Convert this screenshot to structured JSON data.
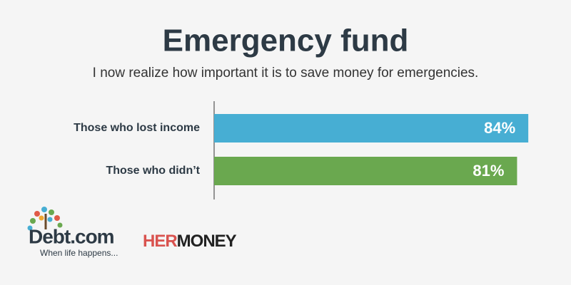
{
  "chart_data": {
    "type": "bar",
    "orientation": "horizontal",
    "title": "Emergency fund",
    "subtitle": "I now realize how important it is to save money for emergencies.",
    "categories": [
      "Those who lost income",
      "Those who didn’t"
    ],
    "values": [
      84,
      81
    ],
    "value_labels": [
      "84%",
      "81%"
    ],
    "colors": [
      "#47aed3",
      "#6aa84f"
    ],
    "branding": {
      "debt": "Debt.com",
      "tagline": "When life happens...",
      "her": "HER",
      "money": "MONEY"
    }
  }
}
